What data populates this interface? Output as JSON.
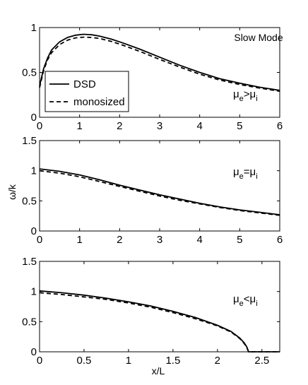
{
  "figure": {
    "ylabel": "ω/k",
    "xlabel": "x/L"
  },
  "chart_data": [
    {
      "type": "line",
      "title": "",
      "annotations": [
        "Slow Mode"
      ],
      "annotation_parts": {
        "main": "μ",
        "sub1": "e",
        "op": ">μ",
        "sub2": "i"
      },
      "xlim": [
        0,
        6
      ],
      "ylim": [
        0,
        1
      ],
      "xticks": [
        0,
        1,
        2,
        3,
        4,
        5,
        6
      ],
      "xtick_labels": [
        "0",
        "1",
        "2",
        "3",
        "4",
        "5",
        "6"
      ],
      "yticks": [
        0,
        0.5,
        1
      ],
      "ytick_labels": [
        "0",
        "0.5",
        "1"
      ],
      "legend": {
        "position": "middle-left",
        "entries": [
          "DSD",
          "monosized"
        ]
      },
      "series": [
        {
          "name": "DSD",
          "style": "solid",
          "x": [
            0,
            0.1,
            0.2,
            0.3,
            0.5,
            0.7,
            0.9,
            1.1,
            1.3,
            1.5,
            1.8,
            2.1,
            2.5,
            3,
            3.5,
            4,
            4.5,
            5,
            5.5,
            6
          ],
          "y": [
            0.35,
            0.54,
            0.66,
            0.75,
            0.84,
            0.89,
            0.915,
            0.925,
            0.92,
            0.905,
            0.87,
            0.825,
            0.76,
            0.67,
            0.58,
            0.5,
            0.43,
            0.38,
            0.335,
            0.3
          ]
        },
        {
          "name": "monosized",
          "style": "dashed",
          "x": [
            0,
            0.1,
            0.2,
            0.3,
            0.5,
            0.7,
            0.9,
            1.1,
            1.3,
            1.5,
            1.8,
            2.1,
            2.5,
            3,
            3.5,
            4,
            4.5,
            5,
            5.5,
            6
          ],
          "y": [
            0.33,
            0.52,
            0.64,
            0.72,
            0.81,
            0.86,
            0.885,
            0.893,
            0.89,
            0.878,
            0.845,
            0.8,
            0.735,
            0.645,
            0.56,
            0.48,
            0.415,
            0.365,
            0.325,
            0.29
          ]
        }
      ]
    },
    {
      "type": "line",
      "annotation_parts": {
        "main": "μ",
        "sub1": "e",
        "op": "=μ",
        "sub2": "i"
      },
      "xlim": [
        0,
        6
      ],
      "ylim": [
        0,
        1.5
      ],
      "xticks": [
        0,
        1,
        2,
        3,
        4,
        5,
        6
      ],
      "xtick_labels": [
        "0",
        "1",
        "2",
        "3",
        "4",
        "5",
        "6"
      ],
      "yticks": [
        0,
        0.5,
        1,
        1.5
      ],
      "ytick_labels": [
        "0",
        "0.5",
        "1",
        "1.5"
      ],
      "series": [
        {
          "style": "solid",
          "x": [
            0,
            0.5,
            1,
            1.5,
            2,
            2.5,
            3,
            3.5,
            4,
            4.5,
            5,
            5.5,
            6
          ],
          "y": [
            1.03,
            0.99,
            0.93,
            0.85,
            0.76,
            0.68,
            0.6,
            0.53,
            0.46,
            0.4,
            0.35,
            0.31,
            0.27
          ]
        },
        {
          "style": "dashed",
          "x": [
            0,
            0.5,
            1,
            1.5,
            2,
            2.5,
            3,
            3.5,
            4,
            4.5,
            5,
            5.5,
            6
          ],
          "y": [
            1.0,
            0.96,
            0.9,
            0.82,
            0.74,
            0.66,
            0.58,
            0.51,
            0.45,
            0.39,
            0.34,
            0.3,
            0.26
          ]
        }
      ]
    },
    {
      "type": "line",
      "annotation_parts": {
        "main": "μ",
        "sub1": "e",
        "op": "<μ",
        "sub2": "i"
      },
      "xlim": [
        0,
        2.7
      ],
      "ylim": [
        0,
        1.5
      ],
      "xticks": [
        0,
        0.5,
        1,
        1.5,
        2,
        2.5
      ],
      "xtick_labels": [
        "0",
        "0.5",
        "1",
        "1.5",
        "2",
        "2.5"
      ],
      "yticks": [
        0,
        0.5,
        1,
        1.5
      ],
      "ytick_labels": [
        "0",
        "0.5",
        "1",
        "1.5"
      ],
      "series": [
        {
          "style": "solid",
          "x": [
            0,
            0.25,
            0.5,
            0.75,
            1,
            1.25,
            1.5,
            1.75,
            2,
            2.15,
            2.25,
            2.3,
            2.33,
            2.35,
            2.7
          ],
          "y": [
            1.01,
            0.98,
            0.94,
            0.89,
            0.83,
            0.76,
            0.67,
            0.57,
            0.44,
            0.34,
            0.23,
            0.15,
            0.08,
            0.0,
            0.0
          ]
        },
        {
          "style": "dashed",
          "x": [
            0,
            0.25,
            0.5,
            0.75,
            1,
            1.25,
            1.5,
            1.75,
            2,
            2.15,
            2.25,
            2.3,
            2.33,
            2.35,
            2.7
          ],
          "y": [
            0.98,
            0.95,
            0.91,
            0.87,
            0.81,
            0.74,
            0.65,
            0.55,
            0.43,
            0.33,
            0.22,
            0.14,
            0.07,
            0.0,
            0.0
          ]
        }
      ]
    }
  ]
}
